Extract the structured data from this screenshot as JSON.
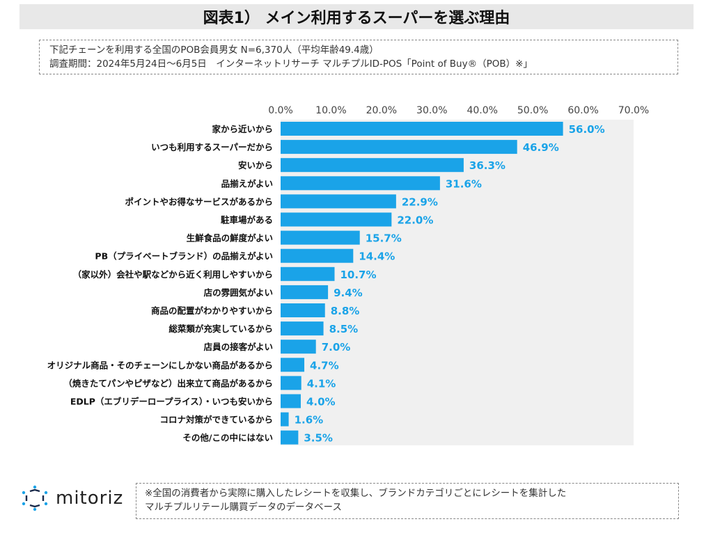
{
  "header": {
    "title": "図表1） メイン利用するスーパーを選ぶ理由"
  },
  "info": {
    "line1": "下記チェーンを利用する全国のPOB会員男女 N=6,370人（平均年齢49.4歳）",
    "line2": "調査期間：2024年5月24日～6月5日　インターネットリサーチ マルチプルID-POS「Point of Buy®（POB）※」"
  },
  "footer": {
    "line1": "※全国の消費者から実際に購入したレシートを収集し、ブランドカテゴリごとにレシートを集計した",
    "line2": "マルチプルリテール購買データのデータベース"
  },
  "logo": {
    "text": "mitoriz",
    "icon": "mitoriz-logo-icon"
  },
  "colors": {
    "bar": "#1aa3e8",
    "label": "#1aa3e8",
    "plot_bg": "#f0f0f0"
  },
  "chart_data": {
    "type": "bar",
    "orientation": "horizontal",
    "categories": [
      "家から近いから",
      "いつも利用するスーパーだから",
      "安いから",
      "品揃えがよい",
      "ポイントやお得なサービスがあるから",
      "駐車場がある",
      "生鮮食品の鮮度がよい",
      "PB（プライベートブランド）の品揃えがよい",
      "（家以外）会社や駅などから近く利用しやすいから",
      "店の雰囲気がよい",
      "商品の配置がわかりやすいから",
      "総菜類が充実しているから",
      "店員の接客がよい",
      "オリジナル商品・そのチェーンにしかない商品があるから",
      "（焼きたてパンやピザなど）出来立て商品があるから",
      "EDLP（エブリデーロープライス）・いつも安いから",
      "コロナ対策ができているから",
      "その他/この中にはない"
    ],
    "values": [
      56.0,
      46.9,
      36.3,
      31.6,
      22.9,
      22.0,
      15.7,
      14.4,
      10.7,
      9.4,
      8.8,
      8.5,
      7.0,
      4.7,
      4.1,
      4.0,
      1.6,
      3.5
    ],
    "value_labels": [
      "56.0%",
      "46.9%",
      "36.3%",
      "31.6%",
      "22.9%",
      "22.0%",
      "15.7%",
      "14.4%",
      "10.7%",
      "9.4%",
      "8.8%",
      "8.5%",
      "7.0%",
      "4.7%",
      "4.1%",
      "4.0%",
      "1.6%",
      "3.5%"
    ],
    "xlim": [
      0,
      70
    ],
    "x_ticks": [
      "0.0%",
      "10.0%",
      "20.0%",
      "30.0%",
      "40.0%",
      "50.0%",
      "60.0%",
      "70.0%"
    ],
    "x_tick_values": [
      0,
      10,
      20,
      30,
      40,
      50,
      60,
      70
    ],
    "axis_position": "top",
    "grid": false,
    "legend": "none"
  }
}
